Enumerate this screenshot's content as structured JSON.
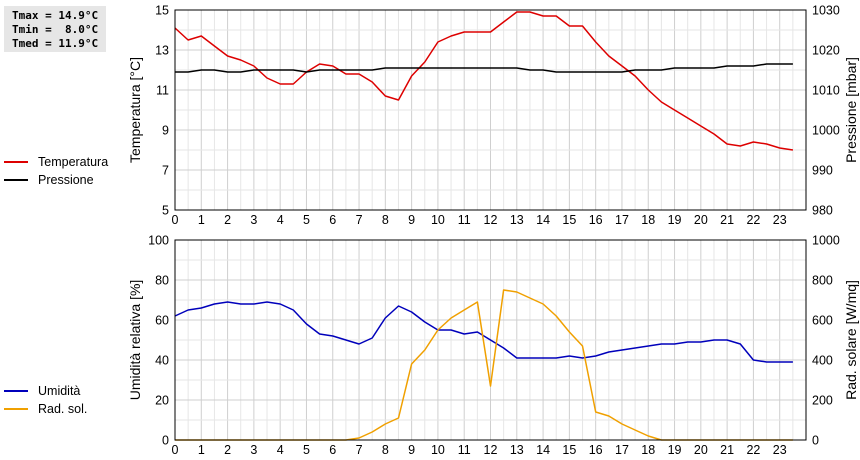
{
  "stats": {
    "tmax": "Tmax = 14.9°C",
    "tmin": "Tmin =  8.0°C",
    "tmed": "Tmed = 11.9°C"
  },
  "legend_top": [
    {
      "label": "Temperatura",
      "color": "#dd0000"
    },
    {
      "label": "Pressione",
      "color": "#000000"
    }
  ],
  "legend_bottom": [
    {
      "label": "Umidità",
      "color": "#0000bb"
    },
    {
      "label": "Rad. sol.",
      "color": "#f0a000"
    }
  ],
  "chart_data": [
    {
      "type": "line",
      "grid": true,
      "x_ticks": [
        0,
        1,
        2,
        3,
        4,
        5,
        6,
        7,
        8,
        9,
        10,
        11,
        12,
        13,
        14,
        15,
        16,
        17,
        18,
        19,
        20,
        21,
        22,
        23
      ],
      "xlim": [
        0,
        24
      ],
      "ylabel_left": "Temperatura [°C]",
      "ylim_left": [
        5,
        15
      ],
      "yticks_left": [
        5,
        7,
        9,
        11,
        13,
        15
      ],
      "ylabel_right": "Pressione [mbar]",
      "ylim_right": [
        980,
        1030
      ],
      "yticks_right": [
        980,
        990,
        1000,
        1010,
        1020,
        1030
      ],
      "series": [
        {
          "name": "Temperatura",
          "axis": "left",
          "color": "#dd0000",
          "x": [
            0,
            0.5,
            1,
            1.5,
            2,
            2.5,
            3,
            3.5,
            4,
            4.5,
            5,
            5.5,
            6,
            6.5,
            7,
            7.5,
            8,
            8.5,
            9,
            9.5,
            10,
            10.5,
            11,
            11.5,
            12,
            12.5,
            13,
            13.5,
            14,
            14.5,
            15,
            15.5,
            16,
            16.5,
            17,
            17.5,
            18,
            18.5,
            19,
            19.5,
            20,
            20.5,
            21,
            21.5,
            22,
            22.5,
            23,
            23.5
          ],
          "y": [
            14.1,
            13.5,
            13.7,
            13.2,
            12.7,
            12.5,
            12.2,
            11.6,
            11.3,
            11.3,
            11.9,
            12.3,
            12.2,
            11.8,
            11.8,
            11.4,
            10.7,
            10.5,
            11.7,
            12.4,
            13.4,
            13.7,
            13.9,
            13.9,
            13.9,
            14.4,
            14.9,
            14.9,
            14.7,
            14.7,
            14.2,
            14.2,
            13.4,
            12.7,
            12.2,
            11.7,
            11.0,
            10.4,
            10.0,
            9.6,
            9.2,
            8.8,
            8.3,
            8.2,
            8.4,
            8.3,
            8.1,
            8.0
          ]
        },
        {
          "name": "Pressione",
          "axis": "right",
          "color": "#000000",
          "x": [
            0,
            0.5,
            1,
            1.5,
            2,
            2.5,
            3,
            3.5,
            4,
            4.5,
            5,
            5.5,
            6,
            6.5,
            7,
            7.5,
            8,
            8.5,
            9,
            9.5,
            10,
            10.5,
            11,
            11.5,
            12,
            12.5,
            13,
            13.5,
            14,
            14.5,
            15,
            15.5,
            16,
            16.5,
            17,
            17.5,
            18,
            18.5,
            19,
            19.5,
            20,
            20.5,
            21,
            21.5,
            22,
            22.5,
            23,
            23.5
          ],
          "y": [
            1014.5,
            1014.5,
            1015,
            1015,
            1014.5,
            1014.5,
            1015,
            1015,
            1015,
            1015,
            1014.5,
            1015,
            1015,
            1015,
            1015,
            1015,
            1015.5,
            1015.5,
            1015.5,
            1015.5,
            1015.5,
            1015.5,
            1015.5,
            1015.5,
            1015.5,
            1015.5,
            1015.5,
            1015,
            1015,
            1014.5,
            1014.5,
            1014.5,
            1014.5,
            1014.5,
            1014.5,
            1015,
            1015,
            1015,
            1015.5,
            1015.5,
            1015.5,
            1015.5,
            1016,
            1016,
            1016,
            1016.5,
            1016.5,
            1016.5
          ]
        }
      ]
    },
    {
      "type": "line",
      "grid": true,
      "x_ticks": [
        0,
        1,
        2,
        3,
        4,
        5,
        6,
        7,
        8,
        9,
        10,
        11,
        12,
        13,
        14,
        15,
        16,
        17,
        18,
        19,
        20,
        21,
        22,
        23
      ],
      "xlim": [
        0,
        24
      ],
      "ylabel_left": "Umidità relativa [%]",
      "ylim_left": [
        0,
        100
      ],
      "yticks_left": [
        0,
        20,
        40,
        60,
        80,
        100
      ],
      "ylabel_right": "Rad. solare [W/mq]",
      "ylim_right": [
        0,
        1000
      ],
      "yticks_right": [
        0,
        200,
        400,
        600,
        800,
        1000
      ],
      "series": [
        {
          "name": "Umidità",
          "axis": "left",
          "color": "#0000bb",
          "x": [
            0,
            0.5,
            1,
            1.5,
            2,
            2.5,
            3,
            3.5,
            4,
            4.5,
            5,
            5.5,
            6,
            6.5,
            7,
            7.5,
            8,
            8.5,
            9,
            9.5,
            10,
            10.5,
            11,
            11.5,
            12,
            12.5,
            13,
            13.5,
            14,
            14.5,
            15,
            15.5,
            16,
            16.5,
            17,
            17.5,
            18,
            18.5,
            19,
            19.5,
            20,
            20.5,
            21,
            21.5,
            22,
            22.5,
            23,
            23.5
          ],
          "y": [
            62,
            65,
            66,
            68,
            69,
            68,
            68,
            69,
            68,
            65,
            58,
            53,
            52,
            50,
            48,
            51,
            61,
            67,
            64,
            59,
            55,
            55,
            53,
            54,
            50,
            46,
            41,
            41,
            41,
            41,
            42,
            41,
            42,
            44,
            45,
            46,
            47,
            48,
            48,
            49,
            49,
            50,
            50,
            48,
            40,
            39,
            39,
            39
          ]
        },
        {
          "name": "Rad. sol.",
          "axis": "right",
          "color": "#f0a000",
          "x": [
            0,
            1,
            2,
            3,
            4,
            5,
            6,
            6.5,
            7,
            7.5,
            8,
            8.5,
            9,
            9.5,
            10,
            10.5,
            11,
            11.5,
            12,
            12.5,
            13,
            13.5,
            14,
            14.5,
            15,
            15.5,
            16,
            16.5,
            17,
            17.5,
            18,
            18.5,
            19,
            20,
            21,
            22,
            23,
            23.5
          ],
          "y": [
            0,
            0,
            0,
            0,
            0,
            0,
            0,
            0,
            10,
            40,
            80,
            110,
            380,
            450,
            550,
            610,
            650,
            690,
            270,
            750,
            740,
            710,
            680,
            620,
            540,
            470,
            140,
            120,
            80,
            50,
            20,
            0,
            0,
            0,
            0,
            0,
            0,
            0
          ]
        }
      ]
    }
  ]
}
